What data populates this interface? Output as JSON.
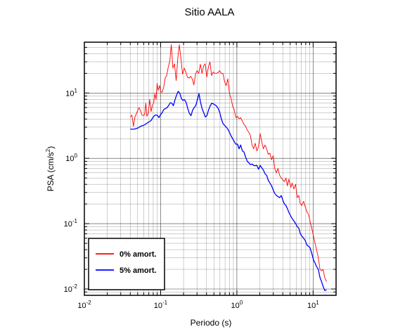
{
  "chart_data": {
    "type": "line",
    "title": "Sitio AALA",
    "xlabel": "Periodo (s)",
    "ylabel_base": "PSA (cm/s",
    "ylabel_exp": "2",
    "ylabel_close": ")",
    "xscale": "log",
    "yscale": "log",
    "xlim": [
      0.01,
      20
    ],
    "ylim": [
      0.008,
      60
    ],
    "grid": true,
    "legend_position": "bottom-left",
    "x_tick_labels": [
      {
        "base": "10",
        "exp": "-2",
        "value": 0.01
      },
      {
        "base": "10",
        "exp": "-1",
        "value": 0.1
      },
      {
        "base": "10",
        "exp": "0",
        "value": 1
      },
      {
        "base": "10",
        "exp": "1",
        "value": 10
      }
    ],
    "y_tick_labels": [
      {
        "base": "10",
        "exp": "-2",
        "value": 0.01
      },
      {
        "base": "10",
        "exp": "-1",
        "value": 0.1
      },
      {
        "base": "10",
        "exp": "0",
        "value": 1
      },
      {
        "base": "10",
        "exp": "1",
        "value": 10
      }
    ],
    "series": [
      {
        "name": "0% amort.",
        "color": "#ff0000",
        "points": [
          [
            0.04,
            4.3
          ],
          [
            0.042,
            4.6
          ],
          [
            0.044,
            3.1
          ],
          [
            0.046,
            4.3
          ],
          [
            0.048,
            4.8
          ],
          [
            0.05,
            5.4
          ],
          [
            0.052,
            6.0
          ],
          [
            0.055,
            5.2
          ],
          [
            0.057,
            4.6
          ],
          [
            0.06,
            4.5
          ],
          [
            0.062,
            4.8
          ],
          [
            0.064,
            7.0
          ],
          [
            0.066,
            4.4
          ],
          [
            0.069,
            5.0
          ],
          [
            0.072,
            8.0
          ],
          [
            0.075,
            5.2
          ],
          [
            0.078,
            6.5
          ],
          [
            0.081,
            7.0
          ],
          [
            0.084,
            9.7
          ],
          [
            0.087,
            8.0
          ],
          [
            0.09,
            14
          ],
          [
            0.093,
            11
          ],
          [
            0.097,
            13
          ],
          [
            0.1,
            10.5
          ],
          [
            0.105,
            10.3
          ],
          [
            0.11,
            12.5
          ],
          [
            0.115,
            17
          ],
          [
            0.12,
            18.5
          ],
          [
            0.126,
            25
          ],
          [
            0.132,
            31
          ],
          [
            0.138,
            55
          ],
          [
            0.145,
            24
          ],
          [
            0.152,
            28
          ],
          [
            0.16,
            15.5
          ],
          [
            0.168,
            34
          ],
          [
            0.176,
            55
          ],
          [
            0.185,
            33
          ],
          [
            0.194,
            19.5
          ],
          [
            0.204,
            24
          ],
          [
            0.214,
            21
          ],
          [
            0.225,
            17.5
          ],
          [
            0.236,
            17
          ],
          [
            0.248,
            18
          ],
          [
            0.26,
            16.5
          ],
          [
            0.273,
            13.3
          ],
          [
            0.287,
            19.5
          ],
          [
            0.301,
            22
          ],
          [
            0.316,
            20
          ],
          [
            0.332,
            27.5
          ],
          [
            0.349,
            20
          ],
          [
            0.366,
            26
          ],
          [
            0.384,
            28
          ],
          [
            0.403,
            17.5
          ],
          [
            0.423,
            25
          ],
          [
            0.444,
            30
          ],
          [
            0.466,
            18.5
          ],
          [
            0.49,
            21
          ],
          [
            0.514,
            20
          ],
          [
            0.54,
            20
          ],
          [
            0.567,
            20.5
          ],
          [
            0.595,
            22
          ],
          [
            0.625,
            20
          ],
          [
            0.656,
            20
          ],
          [
            0.689,
            15
          ],
          [
            0.723,
            13
          ],
          [
            0.76,
            16.5
          ],
          [
            0.8,
            9.8
          ],
          [
            0.84,
            8.2
          ],
          [
            0.88,
            6.3
          ],
          [
            0.925,
            5.5
          ],
          [
            0.97,
            4.2
          ],
          [
            1.02,
            4.4
          ],
          [
            1.07,
            4.0
          ],
          [
            1.12,
            4.2
          ],
          [
            1.18,
            3.7
          ],
          [
            1.24,
            3.3
          ],
          [
            1.3,
            3.1
          ],
          [
            1.37,
            2.7
          ],
          [
            1.44,
            2.5
          ],
          [
            1.51,
            2.2
          ],
          [
            1.58,
            1.6
          ],
          [
            1.66,
            1.4
          ],
          [
            1.74,
            1.7
          ],
          [
            1.83,
            1.3
          ],
          [
            1.92,
            1.5
          ],
          [
            2.02,
            2.4
          ],
          [
            2.12,
            1.8
          ],
          [
            2.23,
            1.4
          ],
          [
            2.34,
            1.6
          ],
          [
            2.46,
            1.4
          ],
          [
            2.58,
            1.15
          ],
          [
            2.71,
            1.2
          ],
          [
            2.85,
            0.95
          ],
          [
            2.99,
            1.1
          ],
          [
            3.14,
            0.7
          ],
          [
            3.3,
            0.6
          ],
          [
            3.46,
            0.7
          ],
          [
            3.64,
            0.55
          ],
          [
            3.82,
            0.5
          ],
          [
            4.0,
            0.47
          ],
          [
            4.2,
            0.44
          ],
          [
            4.4,
            0.5
          ],
          [
            4.6,
            0.38
          ],
          [
            4.8,
            0.48
          ],
          [
            5.1,
            0.36
          ],
          [
            5.3,
            0.42
          ],
          [
            5.6,
            0.34
          ],
          [
            5.9,
            0.4
          ],
          [
            6.2,
            0.25
          ],
          [
            6.5,
            0.27
          ],
          [
            6.8,
            0.2
          ],
          [
            7.1,
            0.19
          ],
          [
            7.5,
            0.22
          ],
          [
            7.9,
            0.18
          ],
          [
            8.3,
            0.15
          ],
          [
            8.7,
            0.14
          ],
          [
            9.1,
            0.11
          ],
          [
            9.6,
            0.085
          ],
          [
            10.1,
            0.065
          ],
          [
            10.6,
            0.05
          ],
          [
            11.1,
            0.04
          ],
          [
            11.7,
            0.03
          ],
          [
            12.3,
            0.02
          ],
          [
            12.9,
            0.019
          ],
          [
            13.5,
            0.02
          ],
          [
            14.2,
            0.015
          ],
          [
            15.0,
            0.013
          ]
        ]
      },
      {
        "name": "5% amort.",
        "color": "#0000ff",
        "points": [
          [
            0.04,
            2.8
          ],
          [
            0.045,
            2.8
          ],
          [
            0.05,
            2.9
          ],
          [
            0.055,
            3.1
          ],
          [
            0.06,
            3.2
          ],
          [
            0.065,
            3.4
          ],
          [
            0.07,
            3.6
          ],
          [
            0.075,
            3.8
          ],
          [
            0.08,
            4.3
          ],
          [
            0.085,
            4.6
          ],
          [
            0.09,
            4.6
          ],
          [
            0.095,
            4.2
          ],
          [
            0.1,
            4.7
          ],
          [
            0.105,
            5.0
          ],
          [
            0.11,
            5.6
          ],
          [
            0.116,
            5.8
          ],
          [
            0.122,
            6.0
          ],
          [
            0.128,
            6.5
          ],
          [
            0.134,
            7.1
          ],
          [
            0.14,
            7.0
          ],
          [
            0.147,
            6.4
          ],
          [
            0.154,
            7.8
          ],
          [
            0.162,
            9.3
          ],
          [
            0.17,
            10.6
          ],
          [
            0.178,
            10.0
          ],
          [
            0.187,
            8.3
          ],
          [
            0.196,
            7.7
          ],
          [
            0.206,
            7.9
          ],
          [
            0.216,
            7.2
          ],
          [
            0.227,
            5.8
          ],
          [
            0.238,
            4.9
          ],
          [
            0.25,
            4.5
          ],
          [
            0.262,
            5.4
          ],
          [
            0.275,
            6.0
          ],
          [
            0.289,
            6.4
          ],
          [
            0.303,
            7.8
          ],
          [
            0.318,
            9.8
          ],
          [
            0.334,
            7.2
          ],
          [
            0.351,
            5.7
          ],
          [
            0.368,
            5.0
          ],
          [
            0.386,
            4.3
          ],
          [
            0.405,
            4.5
          ],
          [
            0.425,
            5.5
          ],
          [
            0.446,
            6.3
          ],
          [
            0.468,
            7.0
          ],
          [
            0.491,
            6.8
          ],
          [
            0.516,
            6.6
          ],
          [
            0.542,
            6.3
          ],
          [
            0.569,
            5.8
          ],
          [
            0.597,
            5.0
          ],
          [
            0.627,
            4.0
          ],
          [
            0.658,
            3.4
          ],
          [
            0.691,
            3.2
          ],
          [
            0.726,
            3.0
          ],
          [
            0.762,
            2.8
          ],
          [
            0.8,
            2.5
          ],
          [
            0.84,
            2.2
          ],
          [
            0.88,
            2.0
          ],
          [
            0.925,
            1.8
          ],
          [
            0.97,
            1.65
          ],
          [
            1.02,
            1.65
          ],
          [
            1.07,
            1.4
          ],
          [
            1.12,
            1.6
          ],
          [
            1.18,
            1.3
          ],
          [
            1.24,
            1.25
          ],
          [
            1.3,
            1.05
          ],
          [
            1.37,
            0.9
          ],
          [
            1.44,
            0.85
          ],
          [
            1.51,
            0.8
          ],
          [
            1.58,
            0.82
          ],
          [
            1.66,
            0.78
          ],
          [
            1.74,
            0.77
          ],
          [
            1.83,
            0.78
          ],
          [
            1.92,
            0.68
          ],
          [
            2.02,
            0.78
          ],
          [
            2.12,
            0.72
          ],
          [
            2.23,
            0.66
          ],
          [
            2.34,
            0.58
          ],
          [
            2.46,
            0.55
          ],
          [
            2.58,
            0.46
          ],
          [
            2.71,
            0.42
          ],
          [
            2.85,
            0.38
          ],
          [
            2.99,
            0.33
          ],
          [
            3.14,
            0.29
          ],
          [
            3.3,
            0.27
          ],
          [
            3.46,
            0.26
          ],
          [
            3.64,
            0.25
          ],
          [
            3.82,
            0.27
          ],
          [
            4.0,
            0.23
          ],
          [
            4.2,
            0.2
          ],
          [
            4.4,
            0.19
          ],
          [
            4.6,
            0.17
          ],
          [
            4.8,
            0.15
          ],
          [
            5.1,
            0.13
          ],
          [
            5.3,
            0.12
          ],
          [
            5.6,
            0.11
          ],
          [
            5.9,
            0.1
          ],
          [
            6.2,
            0.09
          ],
          [
            6.5,
            0.085
          ],
          [
            6.8,
            0.07
          ],
          [
            7.1,
            0.065
          ],
          [
            7.5,
            0.06
          ],
          [
            7.9,
            0.055
          ],
          [
            8.3,
            0.047
          ],
          [
            8.7,
            0.045
          ],
          [
            9.1,
            0.043
          ],
          [
            9.6,
            0.035
          ],
          [
            10.1,
            0.028
          ],
          [
            10.6,
            0.025
          ],
          [
            11.1,
            0.022
          ],
          [
            11.7,
            0.02
          ],
          [
            12.3,
            0.015
          ],
          [
            12.9,
            0.013
          ],
          [
            13.5,
            0.011
          ],
          [
            14.2,
            0.0095
          ],
          [
            15.0,
            0.0097
          ]
        ]
      }
    ]
  }
}
